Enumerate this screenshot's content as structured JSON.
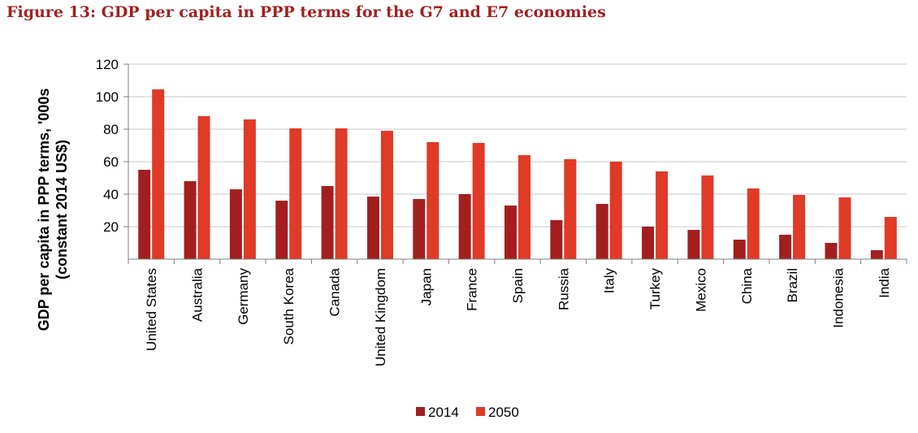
{
  "chart_data": {
    "type": "bar",
    "title": "Figure 13: GDP per capita in PPP terms for the G7 and E7 economies",
    "ylabel_line1": "GDP per capita in PPP terms, '000s",
    "ylabel_line2": "(constant 2014 US$)",
    "xlabel": "",
    "ylim": [
      0,
      120
    ],
    "yticks": [
      20,
      40,
      60,
      80,
      100,
      120
    ],
    "grid": true,
    "legend_position": "bottom-center",
    "categories": [
      "United States",
      "Australia",
      "Germany",
      "South Korea",
      "Canada",
      "United Kingdom",
      "Japan",
      "France",
      "Spain",
      "Russia",
      "Italy",
      "Turkey",
      "Mexico",
      "China",
      "Brazil",
      "Indonesia",
      "India"
    ],
    "series": [
      {
        "name": "2014",
        "color": "#a31f1f",
        "values": [
          55,
          48,
          43,
          36,
          45,
          38.5,
          37,
          40,
          33,
          24,
          34,
          20,
          18,
          12,
          15,
          10,
          5.5
        ]
      },
      {
        "name": "2050",
        "color": "#e03a28",
        "values": [
          104.5,
          88,
          86,
          80.5,
          80.5,
          79,
          72,
          71.5,
          64,
          61.5,
          60,
          54,
          51.5,
          43.5,
          39.5,
          38,
          26
        ]
      }
    ]
  }
}
